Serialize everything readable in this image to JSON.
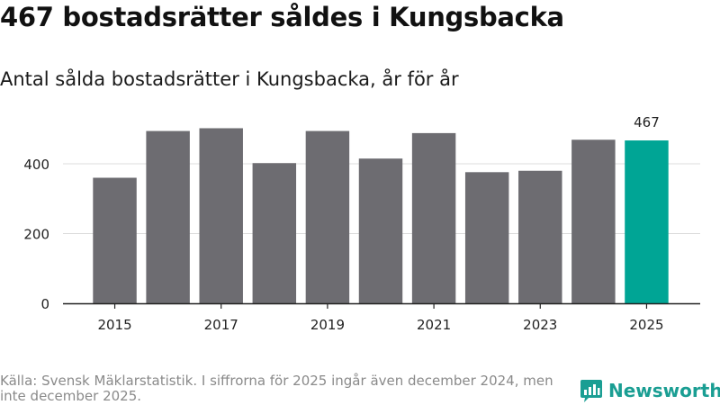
{
  "headline": "467 bostadsrätter såldes i Kungsbacka",
  "subtitle": "Antal sålda bostadsrätter i Kungsbacka, år för år",
  "footer": {
    "source": "Källa: Svensk Mäklarstatistik. I siffrorna för 2025 ingår även december 2024, men inte december 2025."
  },
  "brand": {
    "name": "Newsworthy",
    "icon": "newsworthy-logo-icon",
    "color": "#1a9e93"
  },
  "chart_data": {
    "type": "bar",
    "title": "Antal sålda bostadsrätter i Kungsbacka, år för år",
    "xlabel": "",
    "ylabel": "",
    "categories": [
      "2015",
      "2016",
      "2017",
      "2018",
      "2019",
      "2020",
      "2021",
      "2022",
      "2023",
      "2024",
      "2025"
    ],
    "values": [
      360,
      494,
      502,
      402,
      494,
      415,
      488,
      376,
      380,
      469,
      467
    ],
    "x_tick_labels": [
      "2015",
      "2017",
      "2019",
      "2021",
      "2023",
      "2025"
    ],
    "y_ticks": [
      0,
      200,
      400
    ],
    "ylim": [
      0,
      560
    ],
    "grid": true,
    "bar_color": "#6d6c71",
    "highlight_color": "#00a595",
    "highlight_category": "2025",
    "data_labels": [
      {
        "category": "2025",
        "text": "467"
      }
    ]
  }
}
